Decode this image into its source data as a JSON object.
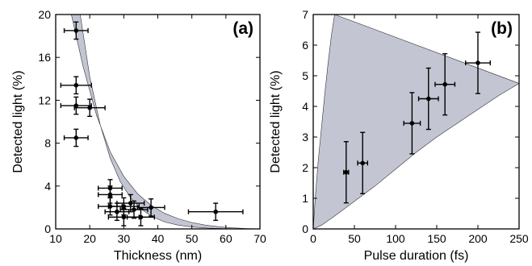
{
  "chart_data": [
    {
      "type": "scatter",
      "panel_label": "(a)",
      "xlabel": "Thickness (nm)",
      "ylabel": "Detected light (%)",
      "xlim": [
        10,
        70
      ],
      "ylim": [
        0,
        20
      ],
      "xticks": [
        10,
        20,
        30,
        40,
        50,
        60,
        70
      ],
      "yticks": [
        0,
        4,
        8,
        12,
        16,
        20
      ],
      "band_color": "#c3c6d2",
      "points": [
        {
          "x": 16,
          "y": 18.5,
          "xerr": 3.5,
          "yerr": 0.8
        },
        {
          "x": 16,
          "y": 13.4,
          "xerr": 4.5,
          "yerr": 0.8
        },
        {
          "x": 16,
          "y": 11.5,
          "xerr": 4.5,
          "yerr": 0.8
        },
        {
          "x": 20,
          "y": 11.3,
          "xerr": 4.5,
          "yerr": 0.8
        },
        {
          "x": 16,
          "y": 8.5,
          "xerr": 3.5,
          "yerr": 0.8
        },
        {
          "x": 26,
          "y": 3.8,
          "xerr": 3.5,
          "yerr": 0.8
        },
        {
          "x": 26,
          "y": 3.2,
          "xerr": 3.5,
          "yerr": 0.8
        },
        {
          "x": 26,
          "y": 2.1,
          "xerr": 3.5,
          "yerr": 0.8
        },
        {
          "x": 28,
          "y": 1.6,
          "xerr": 3.5,
          "yerr": 0.8
        },
        {
          "x": 30,
          "y": 2.1,
          "xerr": 4.5,
          "yerr": 0.8
        },
        {
          "x": 30,
          "y": 1.1,
          "xerr": 4.5,
          "yerr": 0.8
        },
        {
          "x": 32,
          "y": 2.4,
          "xerr": 4.0,
          "yerr": 0.8
        },
        {
          "x": 33,
          "y": 1.8,
          "xerr": 4.0,
          "yerr": 0.8
        },
        {
          "x": 35,
          "y": 1.1,
          "xerr": 4.0,
          "yerr": 0.8
        },
        {
          "x": 38,
          "y": 2.0,
          "xerr": 4.0,
          "yerr": 0.8
        },
        {
          "x": 57,
          "y": 1.6,
          "xerr": 8.0,
          "yerr": 0.8
        }
      ],
      "band_upper": [
        [
          14.6,
          20
        ],
        [
          18,
          15.2
        ],
        [
          22,
          10.6
        ],
        [
          26,
          7.2
        ],
        [
          30,
          4.9
        ],
        [
          34,
          3.3
        ],
        [
          38,
          2.2
        ],
        [
          42,
          1.45
        ],
        [
          46,
          0.95
        ],
        [
          50,
          0.6
        ],
        [
          54,
          0.35
        ],
        [
          58,
          0.2
        ],
        [
          62,
          0.1
        ],
        [
          66,
          0.03
        ],
        [
          70,
          0.01
        ]
      ],
      "band_lower": [
        [
          17.2,
          20
        ],
        [
          20,
          14.2
        ],
        [
          23,
          9.8
        ],
        [
          26,
          6.6
        ],
        [
          29,
          4.4
        ],
        [
          32,
          2.9
        ],
        [
          35,
          1.9
        ],
        [
          38,
          1.2
        ],
        [
          42,
          0.65
        ],
        [
          46,
          0.35
        ],
        [
          50,
          0.18
        ],
        [
          55,
          0.07
        ],
        [
          60,
          0.02
        ],
        [
          70,
          0.0
        ]
      ]
    },
    {
      "type": "scatter",
      "panel_label": "(b)",
      "xlabel": "Pulse duration (fs)",
      "ylabel": "Detected light (%)",
      "xlim": [
        0,
        250
      ],
      "ylim": [
        0,
        7
      ],
      "xticks": [
        0,
        50,
        100,
        150,
        200,
        250
      ],
      "yticks": [
        0,
        1,
        2,
        3,
        4,
        5,
        6,
        7
      ],
      "band_color": "#c3c6d2",
      "points": [
        {
          "x": 40,
          "y": 1.85,
          "xerr": 3,
          "yerr": 1.0
        },
        {
          "x": 60,
          "y": 2.15,
          "xerr": 6,
          "yerr": 1.0
        },
        {
          "x": 120,
          "y": 3.45,
          "xerr": 10,
          "yerr": 1.0
        },
        {
          "x": 140,
          "y": 4.25,
          "xerr": 12,
          "yerr": 1.0
        },
        {
          "x": 160,
          "y": 4.72,
          "xerr": 12,
          "yerr": 1.0
        },
        {
          "x": 200,
          "y": 5.42,
          "xerr": 15,
          "yerr": 1.0
        }
      ],
      "band_upper": [
        [
          0,
          0
        ],
        [
          3,
          1.2
        ],
        [
          6,
          2.2
        ],
        [
          10,
          3.3
        ],
        [
          14,
          4.4
        ],
        [
          18,
          5.4
        ],
        [
          22,
          6.3
        ],
        [
          26,
          7
        ]
      ],
      "band_lower": [
        [
          0,
          0
        ],
        [
          10,
          0.12
        ],
        [
          25,
          0.4
        ],
        [
          50,
          0.9
        ],
        [
          75,
          1.4
        ],
        [
          100,
          1.95
        ],
        [
          125,
          2.5
        ],
        [
          150,
          3.0
        ],
        [
          175,
          3.45
        ],
        [
          200,
          3.9
        ],
        [
          225,
          4.35
        ],
        [
          250,
          4.75
        ]
      ]
    }
  ]
}
